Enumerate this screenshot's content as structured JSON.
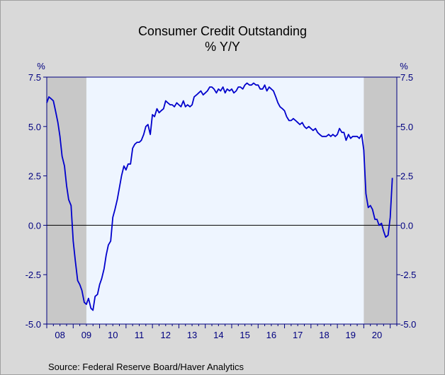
{
  "chart_data": {
    "type": "line",
    "title": "Consumer Credit Outstanding",
    "subtitle": "% Y/Y",
    "ylabel_left": "%",
    "ylabel_right": "%",
    "source": "Source:  Federal Reserve Board/Haver Analytics",
    "ylim": [
      -5.0,
      7.5
    ],
    "yticks": [
      7.5,
      5.0,
      2.5,
      0.0,
      -2.5,
      -5.0
    ],
    "ytick_labels": [
      "7.5",
      "5.0",
      "2.5",
      "0.0",
      "-2.5",
      "-5.0"
    ],
    "xlim": [
      2008.0,
      2021.25
    ],
    "xtick_labels": [
      "08",
      "09",
      "10",
      "11",
      "12",
      "13",
      "14",
      "15",
      "16",
      "17",
      "18",
      "19",
      "20"
    ],
    "xtick_positions": [
      2008.5,
      2009.5,
      2010.5,
      2011.5,
      2012.5,
      2013.5,
      2014.5,
      2015.5,
      2016.5,
      2017.5,
      2018.5,
      2019.5,
      2020.5
    ],
    "recessions": [
      [
        2008.0,
        2009.5
      ],
      [
        2020.0,
        2021.25
      ]
    ],
    "grid": false,
    "zero_line": true,
    "colors": {
      "line": "#0000cc",
      "plot_bg": "#eef5ff",
      "recession": "#c8c8c8",
      "axis": "#000080",
      "frame_bg": "#d9d9d9"
    },
    "series": [
      {
        "values": [
          [
            2008.0,
            6.2
          ],
          [
            2008.08,
            6.5
          ],
          [
            2008.17,
            6.4
          ],
          [
            2008.25,
            6.3
          ],
          [
            2008.33,
            5.8
          ],
          [
            2008.42,
            5.2
          ],
          [
            2008.5,
            4.5
          ],
          [
            2008.58,
            3.5
          ],
          [
            2008.67,
            3.0
          ],
          [
            2008.75,
            2.0
          ],
          [
            2008.83,
            1.3
          ],
          [
            2008.92,
            1.0
          ],
          [
            2009.0,
            -0.8
          ],
          [
            2009.08,
            -1.8
          ],
          [
            2009.17,
            -2.8
          ],
          [
            2009.25,
            -3.0
          ],
          [
            2009.33,
            -3.3
          ],
          [
            2009.42,
            -3.9
          ],
          [
            2009.5,
            -4.0
          ],
          [
            2009.58,
            -3.7
          ],
          [
            2009.67,
            -4.2
          ],
          [
            2009.75,
            -4.3
          ],
          [
            2009.83,
            -3.6
          ],
          [
            2009.92,
            -3.5
          ],
          [
            2010.0,
            -3.0
          ],
          [
            2010.08,
            -2.7
          ],
          [
            2010.17,
            -2.2
          ],
          [
            2010.25,
            -1.5
          ],
          [
            2010.33,
            -1.0
          ],
          [
            2010.42,
            -0.8
          ],
          [
            2010.5,
            0.4
          ],
          [
            2010.58,
            0.8
          ],
          [
            2010.67,
            1.3
          ],
          [
            2010.75,
            1.9
          ],
          [
            2010.83,
            2.5
          ],
          [
            2010.92,
            3.0
          ],
          [
            2011.0,
            2.8
          ],
          [
            2011.08,
            3.1
          ],
          [
            2011.17,
            3.1
          ],
          [
            2011.25,
            3.9
          ],
          [
            2011.33,
            4.1
          ],
          [
            2011.42,
            4.2
          ],
          [
            2011.5,
            4.2
          ],
          [
            2011.58,
            4.3
          ],
          [
            2011.67,
            4.6
          ],
          [
            2011.75,
            5.0
          ],
          [
            2011.83,
            5.1
          ],
          [
            2011.92,
            4.6
          ],
          [
            2012.0,
            5.6
          ],
          [
            2012.08,
            5.5
          ],
          [
            2012.17,
            5.9
          ],
          [
            2012.25,
            5.7
          ],
          [
            2012.33,
            5.8
          ],
          [
            2012.42,
            5.9
          ],
          [
            2012.5,
            6.3
          ],
          [
            2012.58,
            6.2
          ],
          [
            2012.67,
            6.1
          ],
          [
            2012.75,
            6.1
          ],
          [
            2012.83,
            6.0
          ],
          [
            2012.92,
            6.2
          ],
          [
            2013.0,
            6.1
          ],
          [
            2013.08,
            6.0
          ],
          [
            2013.17,
            6.3
          ],
          [
            2013.25,
            6.0
          ],
          [
            2013.33,
            6.1
          ],
          [
            2013.42,
            6.0
          ],
          [
            2013.5,
            6.1
          ],
          [
            2013.58,
            6.5
          ],
          [
            2013.67,
            6.6
          ],
          [
            2013.75,
            6.7
          ],
          [
            2013.83,
            6.8
          ],
          [
            2013.92,
            6.6
          ],
          [
            2014.0,
            6.7
          ],
          [
            2014.08,
            6.8
          ],
          [
            2014.17,
            7.0
          ],
          [
            2014.25,
            7.0
          ],
          [
            2014.33,
            6.9
          ],
          [
            2014.42,
            6.7
          ],
          [
            2014.5,
            6.9
          ],
          [
            2014.58,
            6.8
          ],
          [
            2014.67,
            7.0
          ],
          [
            2014.75,
            6.7
          ],
          [
            2014.83,
            6.9
          ],
          [
            2014.92,
            6.8
          ],
          [
            2015.0,
            6.9
          ],
          [
            2015.08,
            6.7
          ],
          [
            2015.17,
            6.8
          ],
          [
            2015.25,
            7.0
          ],
          [
            2015.33,
            7.0
          ],
          [
            2015.42,
            6.9
          ],
          [
            2015.5,
            7.1
          ],
          [
            2015.58,
            7.2
          ],
          [
            2015.67,
            7.1
          ],
          [
            2015.75,
            7.1
          ],
          [
            2015.83,
            7.2
          ],
          [
            2015.92,
            7.1
          ],
          [
            2016.0,
            7.1
          ],
          [
            2016.08,
            6.9
          ],
          [
            2016.17,
            6.9
          ],
          [
            2016.25,
            7.1
          ],
          [
            2016.33,
            6.8
          ],
          [
            2016.42,
            7.0
          ],
          [
            2016.5,
            6.9
          ],
          [
            2016.58,
            6.8
          ],
          [
            2016.67,
            6.5
          ],
          [
            2016.75,
            6.2
          ],
          [
            2016.83,
            6.0
          ],
          [
            2016.92,
            5.9
          ],
          [
            2017.0,
            5.8
          ],
          [
            2017.08,
            5.5
          ],
          [
            2017.17,
            5.3
          ],
          [
            2017.25,
            5.3
          ],
          [
            2017.33,
            5.4
          ],
          [
            2017.42,
            5.3
          ],
          [
            2017.5,
            5.2
          ],
          [
            2017.58,
            5.1
          ],
          [
            2017.67,
            5.2
          ],
          [
            2017.75,
            5.0
          ],
          [
            2017.83,
            4.9
          ],
          [
            2017.92,
            5.0
          ],
          [
            2018.0,
            4.9
          ],
          [
            2018.08,
            4.8
          ],
          [
            2018.17,
            4.9
          ],
          [
            2018.25,
            4.7
          ],
          [
            2018.33,
            4.6
          ],
          [
            2018.42,
            4.5
          ],
          [
            2018.5,
            4.5
          ],
          [
            2018.58,
            4.5
          ],
          [
            2018.67,
            4.6
          ],
          [
            2018.75,
            4.5
          ],
          [
            2018.83,
            4.6
          ],
          [
            2018.92,
            4.5
          ],
          [
            2019.0,
            4.6
          ],
          [
            2019.08,
            4.9
          ],
          [
            2019.17,
            4.7
          ],
          [
            2019.25,
            4.7
          ],
          [
            2019.33,
            4.3
          ],
          [
            2019.42,
            4.6
          ],
          [
            2019.5,
            4.4
          ],
          [
            2019.58,
            4.5
          ],
          [
            2019.67,
            4.5
          ],
          [
            2019.75,
            4.5
          ],
          [
            2019.83,
            4.4
          ],
          [
            2019.92,
            4.6
          ],
          [
            2020.0,
            3.8
          ],
          [
            2020.08,
            1.6
          ],
          [
            2020.17,
            0.9
          ],
          [
            2020.25,
            1.0
          ],
          [
            2020.33,
            0.8
          ],
          [
            2020.42,
            0.3
          ],
          [
            2020.5,
            0.3
          ],
          [
            2020.58,
            0.0
          ],
          [
            2020.67,
            0.1
          ],
          [
            2020.75,
            -0.3
          ],
          [
            2020.83,
            -0.6
          ],
          [
            2020.92,
            -0.5
          ],
          [
            2021.0,
            0.4
          ],
          [
            2021.08,
            2.4
          ]
        ]
      }
    ]
  }
}
